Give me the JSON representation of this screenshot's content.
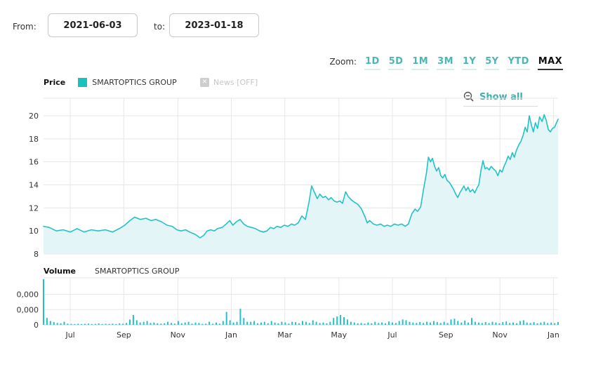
{
  "date_range": {
    "from_label": "From:",
    "from_value": "2021-06-03",
    "to_label": "to:",
    "to_value": "2023-01-18"
  },
  "zoom_bar": {
    "label": "Zoom:",
    "options": [
      "1D",
      "5D",
      "1M",
      "3M",
      "1Y",
      "5Y",
      "YTD",
      "MAX"
    ],
    "active": "MAX"
  },
  "price_legend": {
    "title": "Price",
    "series": "SMARTOPTICS GROUP",
    "news_label": "News [OFF]",
    "news_icon_glyph": "✕"
  },
  "show_all": {
    "label": "Show all",
    "icon": "zoom-out-magnifier"
  },
  "volume_legend": {
    "title": "Volume",
    "series": "SMARTOPTICS GROUP"
  },
  "colors": {
    "accent": "#22c2c6",
    "area_fill": "#e3f5f6",
    "swatch": "#19c2bf",
    "link": "#4bb6b2",
    "grid": "#e7e7e7",
    "axis_text": "#333333",
    "muted": "#c6c6c6",
    "volume_baseline": "#d0d0d0"
  },
  "chart_data": [
    {
      "type": "area",
      "title": "Price",
      "series_name": "SMARTOPTICS GROUP",
      "x_range": [
        "2021-06-03",
        "2023-01-18"
      ],
      "x_tick_labels": [
        "Jul",
        "Sep",
        "Nov",
        "Jan",
        "Mar",
        "May",
        "Jul",
        "Sep",
        "Nov",
        "Jan"
      ],
      "x_tick_pos": [
        0.052,
        0.156,
        0.261,
        0.365,
        0.469,
        0.574,
        0.678,
        0.782,
        0.887,
        0.991
      ],
      "y_ticks": [
        20,
        18,
        16,
        14,
        12,
        10,
        8
      ],
      "ylim": [
        8,
        21.1
      ],
      "grid": true,
      "points": [
        [
          0.0,
          10.4
        ],
        [
          0.011,
          10.3
        ],
        [
          0.025,
          10.0
        ],
        [
          0.038,
          10.1
        ],
        [
          0.052,
          9.9
        ],
        [
          0.065,
          10.2
        ],
        [
          0.079,
          9.9
        ],
        [
          0.093,
          10.1
        ],
        [
          0.106,
          10.0
        ],
        [
          0.12,
          10.1
        ],
        [
          0.134,
          9.9
        ],
        [
          0.147,
          10.2
        ],
        [
          0.158,
          10.5
        ],
        [
          0.168,
          10.9
        ],
        [
          0.177,
          11.2
        ],
        [
          0.188,
          11.0
        ],
        [
          0.199,
          11.1
        ],
        [
          0.209,
          10.9
        ],
        [
          0.218,
          11.0
        ],
        [
          0.229,
          10.8
        ],
        [
          0.24,
          10.5
        ],
        [
          0.25,
          10.4
        ],
        [
          0.259,
          10.1
        ],
        [
          0.267,
          10.0
        ],
        [
          0.276,
          10.1
        ],
        [
          0.284,
          9.9
        ],
        [
          0.295,
          9.7
        ],
        [
          0.304,
          9.4
        ],
        [
          0.311,
          9.6
        ],
        [
          0.318,
          10.0
        ],
        [
          0.325,
          10.1
        ],
        [
          0.332,
          10.0
        ],
        [
          0.338,
          10.2
        ],
        [
          0.347,
          10.3
        ],
        [
          0.355,
          10.6
        ],
        [
          0.362,
          10.9
        ],
        [
          0.368,
          10.5
        ],
        [
          0.375,
          10.8
        ],
        [
          0.382,
          11.0
        ],
        [
          0.389,
          10.6
        ],
        [
          0.396,
          10.4
        ],
        [
          0.404,
          10.3
        ],
        [
          0.412,
          10.2
        ],
        [
          0.42,
          10.0
        ],
        [
          0.427,
          9.9
        ],
        [
          0.434,
          10.0
        ],
        [
          0.441,
          10.3
        ],
        [
          0.447,
          10.2
        ],
        [
          0.454,
          10.4
        ],
        [
          0.461,
          10.3
        ],
        [
          0.468,
          10.5
        ],
        [
          0.475,
          10.4
        ],
        [
          0.482,
          10.6
        ],
        [
          0.488,
          10.5
        ],
        [
          0.495,
          10.7
        ],
        [
          0.502,
          11.3
        ],
        [
          0.509,
          11.0
        ],
        [
          0.516,
          12.5
        ],
        [
          0.521,
          13.9
        ],
        [
          0.527,
          13.3
        ],
        [
          0.532,
          12.8
        ],
        [
          0.537,
          13.2
        ],
        [
          0.543,
          12.9
        ],
        [
          0.548,
          13.0
        ],
        [
          0.554,
          12.7
        ],
        [
          0.559,
          12.9
        ],
        [
          0.565,
          12.6
        ],
        [
          0.57,
          12.5
        ],
        [
          0.576,
          12.6
        ],
        [
          0.581,
          12.4
        ],
        [
          0.587,
          13.4
        ],
        [
          0.592,
          13.0
        ],
        [
          0.598,
          12.7
        ],
        [
          0.604,
          12.5
        ],
        [
          0.611,
          12.3
        ],
        [
          0.618,
          11.9
        ],
        [
          0.625,
          11.2
        ],
        [
          0.629,
          10.7
        ],
        [
          0.634,
          10.9
        ],
        [
          0.641,
          10.6
        ],
        [
          0.648,
          10.5
        ],
        [
          0.655,
          10.6
        ],
        [
          0.662,
          10.4
        ],
        [
          0.668,
          10.5
        ],
        [
          0.675,
          10.4
        ],
        [
          0.682,
          10.6
        ],
        [
          0.689,
          10.5
        ],
        [
          0.696,
          10.6
        ],
        [
          0.703,
          10.4
        ],
        [
          0.709,
          10.6
        ],
        [
          0.716,
          11.5
        ],
        [
          0.722,
          11.9
        ],
        [
          0.727,
          11.7
        ],
        [
          0.733,
          12.1
        ],
        [
          0.738,
          13.5
        ],
        [
          0.744,
          15.0
        ],
        [
          0.748,
          16.4
        ],
        [
          0.752,
          16.0
        ],
        [
          0.756,
          16.3
        ],
        [
          0.76,
          15.6
        ],
        [
          0.764,
          15.2
        ],
        [
          0.768,
          15.5
        ],
        [
          0.772,
          14.8
        ],
        [
          0.776,
          14.6
        ],
        [
          0.78,
          14.9
        ],
        [
          0.784,
          14.4
        ],
        [
          0.789,
          14.2
        ],
        [
          0.793,
          13.9
        ],
        [
          0.797,
          13.6
        ],
        [
          0.801,
          13.2
        ],
        [
          0.805,
          12.9
        ],
        [
          0.809,
          13.3
        ],
        [
          0.813,
          13.6
        ],
        [
          0.817,
          13.9
        ],
        [
          0.821,
          13.5
        ],
        [
          0.825,
          13.8
        ],
        [
          0.829,
          13.4
        ],
        [
          0.834,
          13.6
        ],
        [
          0.838,
          13.3
        ],
        [
          0.842,
          13.7
        ],
        [
          0.846,
          14.0
        ],
        [
          0.85,
          15.2
        ],
        [
          0.854,
          16.1
        ],
        [
          0.858,
          15.4
        ],
        [
          0.862,
          15.5
        ],
        [
          0.866,
          15.3
        ],
        [
          0.87,
          15.6
        ],
        [
          0.874,
          15.4
        ],
        [
          0.879,
          15.2
        ],
        [
          0.883,
          14.8
        ],
        [
          0.887,
          15.3
        ],
        [
          0.891,
          15.1
        ],
        [
          0.895,
          15.6
        ],
        [
          0.899,
          16.0
        ],
        [
          0.903,
          16.5
        ],
        [
          0.907,
          16.2
        ],
        [
          0.911,
          16.8
        ],
        [
          0.915,
          16.4
        ],
        [
          0.919,
          17.0
        ],
        [
          0.924,
          17.5
        ],
        [
          0.928,
          17.8
        ],
        [
          0.932,
          18.3
        ],
        [
          0.936,
          19.0
        ],
        [
          0.94,
          18.6
        ],
        [
          0.944,
          20.0
        ],
        [
          0.948,
          19.2
        ],
        [
          0.952,
          18.6
        ],
        [
          0.956,
          19.4
        ],
        [
          0.96,
          18.9
        ],
        [
          0.964,
          19.9
        ],
        [
          0.969,
          19.5
        ],
        [
          0.973,
          20.1
        ],
        [
          0.977,
          19.6
        ],
        [
          0.981,
          18.8
        ],
        [
          0.985,
          18.6
        ],
        [
          0.989,
          18.9
        ],
        [
          0.993,
          19.0
        ],
        [
          1.0,
          19.7
        ]
      ]
    },
    {
      "type": "bar",
      "title": "Volume",
      "series_name": "SMARTOPTICS GROUP",
      "y_tick_labels": [
        "0,000",
        "0,000",
        "0"
      ],
      "y_tick_values": [
        20000,
        10000,
        0
      ],
      "ylim": [
        0,
        31000
      ],
      "values_thousands": [
        30,
        4.5,
        2.5,
        1.8,
        1.2,
        1,
        2,
        0.8,
        0.6,
        0.5,
        0.7,
        0.5,
        0.6,
        0.8,
        0.5,
        0.6,
        0.9,
        0.5,
        0.7,
        0.6,
        0.8,
        0.5,
        0.9,
        0.7,
        1.2,
        3.5,
        6.5,
        3,
        1.5,
        2,
        2.5,
        1.2,
        1.5,
        1,
        0.8,
        1,
        2,
        1.2,
        0.8,
        2.5,
        1,
        1.5,
        2,
        0.8,
        1.5,
        1.2,
        0.6,
        0.8,
        2,
        0.7,
        1.5,
        0.8,
        2.5,
        8.5,
        3,
        1.5,
        2,
        10.5,
        4.5,
        2,
        2,
        2.5,
        1,
        1.5,
        2,
        1,
        2.5,
        1.5,
        1,
        2,
        1.5,
        0.8,
        2,
        1.8,
        1,
        2.5,
        2,
        1.2,
        3,
        2,
        1.2,
        1.5,
        1,
        2,
        4.5,
        5.5,
        6.5,
        5,
        3.5,
        2,
        1.5,
        1,
        1.2,
        0.8,
        1.5,
        1,
        2,
        1.2,
        1.5,
        1,
        2.2,
        1.5,
        1.2,
        2.5,
        3.5,
        3,
        2,
        1.5,
        1.2,
        1.8,
        1.2,
        2,
        1.5,
        2.5,
        1.8,
        1.2,
        2,
        1.2,
        3.5,
        4,
        2.5,
        1.5,
        2.8,
        1.5,
        4.5,
        2,
        1.5,
        1.2,
        1.8,
        1.2,
        2,
        1.5,
        1,
        1.8,
        2.2,
        1.2,
        1.5,
        1,
        2.5,
        3,
        1.5,
        1.2,
        1.8,
        1,
        1.5,
        2,
        1.2,
        1.5,
        1,
        1.8
      ]
    }
  ]
}
